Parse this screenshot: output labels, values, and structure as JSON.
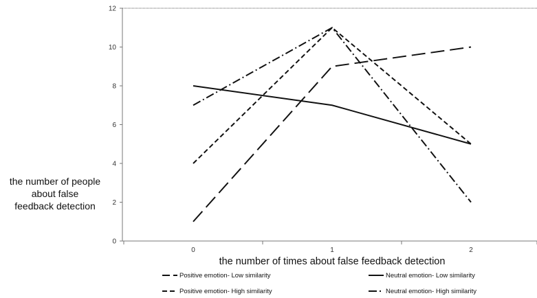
{
  "chart_data": {
    "type": "line",
    "title": "",
    "xlabel": "the number of times about false feedback detection",
    "ylabel_lines": [
      "the number of people",
      "about false",
      "feedback detection"
    ],
    "x": [
      0,
      1,
      2
    ],
    "ylim": [
      0,
      12
    ],
    "y_ticks": [
      0,
      2,
      4,
      6,
      8,
      10,
      12
    ],
    "grid": false,
    "legend_position": "bottom",
    "series": [
      {
        "name": "Positive emotion- Low similarity",
        "values": [
          1,
          9,
          10
        ],
        "style": "long-dash",
        "color": "#111111"
      },
      {
        "name": "Neutral emotion- Low similarity",
        "values": [
          8,
          7,
          5
        ],
        "style": "solid",
        "color": "#111111"
      },
      {
        "name": "Positive emotion- High similarity",
        "values": [
          4,
          11,
          5
        ],
        "style": "short-dash",
        "color": "#111111"
      },
      {
        "name": "Neutral emotion- High similarity",
        "values": [
          7,
          11,
          2
        ],
        "style": "dash-dot",
        "color": "#111111"
      }
    ]
  }
}
